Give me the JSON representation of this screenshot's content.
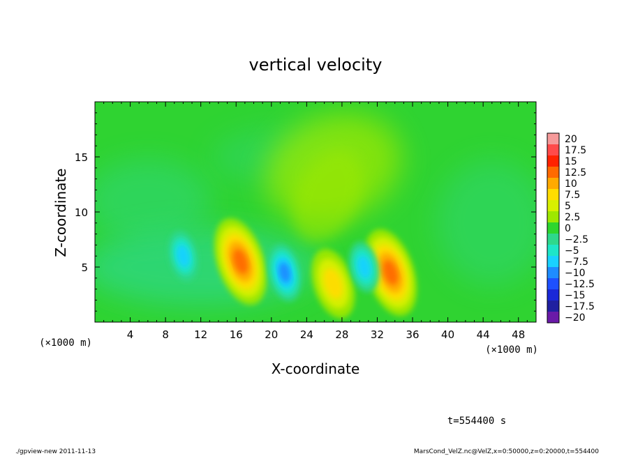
{
  "chart_data": {
    "type": "heatmap",
    "title": "vertical velocity",
    "xlabel": "X-coordinate",
    "ylabel": "Z-coordinate",
    "xunit_left": "(×1000 m)",
    "xunit_right": "(×1000 m)",
    "xlim": [
      0,
      50
    ],
    "ylim": [
      0,
      20
    ],
    "xticks": [
      4,
      8,
      12,
      16,
      20,
      24,
      28,
      32,
      36,
      40,
      44,
      48
    ],
    "yticks": [
      5,
      10,
      15
    ],
    "colorbar": {
      "levels": [
        20,
        17.5,
        15,
        12.5,
        10,
        7.5,
        5,
        2.5,
        0,
        -2.5,
        -5,
        -7.5,
        -10,
        -12.5,
        -15,
        -17.5,
        -20
      ],
      "labels": [
        "20",
        "17.5",
        "15",
        "12.5",
        "10",
        "7.5",
        "5",
        "2.5",
        "0",
        "−2.5",
        "−5",
        "−7.5",
        "−10",
        "−12.5",
        "−15",
        "−17.5",
        "−20"
      ],
      "colors": [
        "#f59a9a",
        "#ff4a4a",
        "#ff2200",
        "#ff6a00",
        "#ffaa00",
        "#ffdd00",
        "#d8f000",
        "#9ee800",
        "#2ed62e",
        "#2ed88c",
        "#1ee6c8",
        "#19d2ff",
        "#1e8cff",
        "#1e50ff",
        "#1a28d8",
        "#2020a0",
        "#6a1aa8"
      ]
    },
    "features": [
      {
        "kind": "updraft",
        "x": 16.5,
        "z": 5.5,
        "peak": 12.5
      },
      {
        "kind": "updraft",
        "x": 33.5,
        "z": 4.5,
        "peak": 12.5
      },
      {
        "kind": "updraft",
        "x": 27,
        "z": 3.5,
        "peak": 7.5
      },
      {
        "kind": "downdraft",
        "x": 10,
        "z": 6,
        "peak": -7.5
      },
      {
        "kind": "downdraft",
        "x": 21.5,
        "z": 4.5,
        "peak": -10
      },
      {
        "kind": "downdraft",
        "x": 30.5,
        "z": 5,
        "peak": -7.5
      },
      {
        "kind": "weak-updraft",
        "x": 27,
        "z": 14,
        "peak": 2.5
      }
    ],
    "annotation": "t=554400 s"
  },
  "footer": {
    "left": "./gpview-new  2011-11-13",
    "right": "MarsCond_VelZ.nc@VelZ,x=0:50000,z=0:20000,t=554400"
  }
}
